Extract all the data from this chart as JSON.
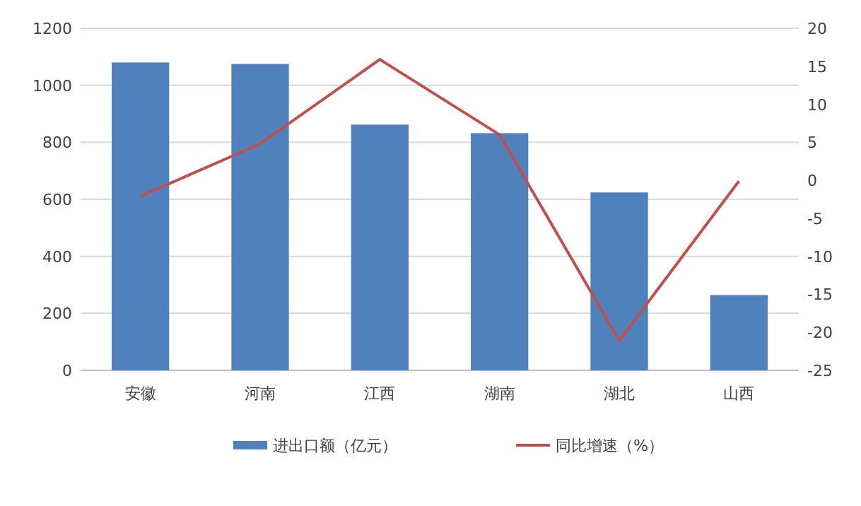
{
  "chart_data": {
    "type": "bar",
    "categories": [
      "安徽",
      "河南",
      "江西",
      "湖南",
      "湖北",
      "山西"
    ],
    "series": [
      {
        "name": "进出口额（亿元）",
        "color": "#4f81bd",
        "values": [
          1080,
          1075,
          862,
          832,
          624,
          264
        ]
      },
      {
        "name": "同比增速（%）",
        "type": "line",
        "axis": "y2",
        "color": "#c0504d",
        "values": [
          -2.1,
          4.8,
          15.9,
          6.0,
          -21.1,
          -0.1
        ]
      }
    ],
    "ylim": [
      0,
      1200
    ],
    "yticks": [
      0,
      200,
      400,
      600,
      800,
      1000,
      1200
    ],
    "y2lim": [
      -25,
      20
    ],
    "y2ticks": [
      -25,
      -20,
      -15,
      -10,
      -5,
      0,
      5,
      10,
      15,
      20
    ],
    "grid": "y",
    "legend": "bottom",
    "marker": "none",
    "line_style": "solid"
  }
}
